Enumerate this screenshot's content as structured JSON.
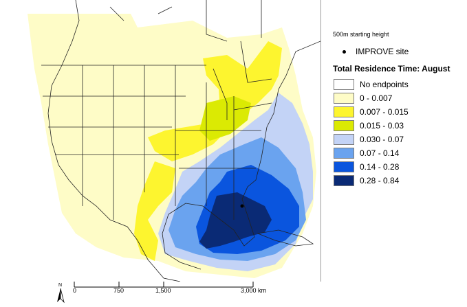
{
  "legend": {
    "subtitle": "500m starting height",
    "site_label": "IMPROVE site",
    "title": "Total Residence Time: August",
    "items": [
      {
        "label": "No endpoints",
        "color": "#ffffff"
      },
      {
        "label": "0 - 0.007",
        "color": "#fefcc7"
      },
      {
        "label": "0.007 - 0.015",
        "color": "#fdf52f"
      },
      {
        "label": "0.015 - 0.03",
        "color": "#dbea03"
      },
      {
        "label": "0.030 - 0.07",
        "color": "#c3d3f6"
      },
      {
        "label": "0.07 - 0.14",
        "color": "#6aa3ef"
      },
      {
        "label": "0.14 - 0.28",
        "color": "#0a55de"
      },
      {
        "label": "0.28 - 0.84",
        "color": "#0a2a75"
      }
    ]
  },
  "scalebar": {
    "labels": [
      "0",
      "750",
      "1,500",
      "3,000 km"
    ]
  },
  "north_label": "N",
  "site_icon": "dot-icon"
}
